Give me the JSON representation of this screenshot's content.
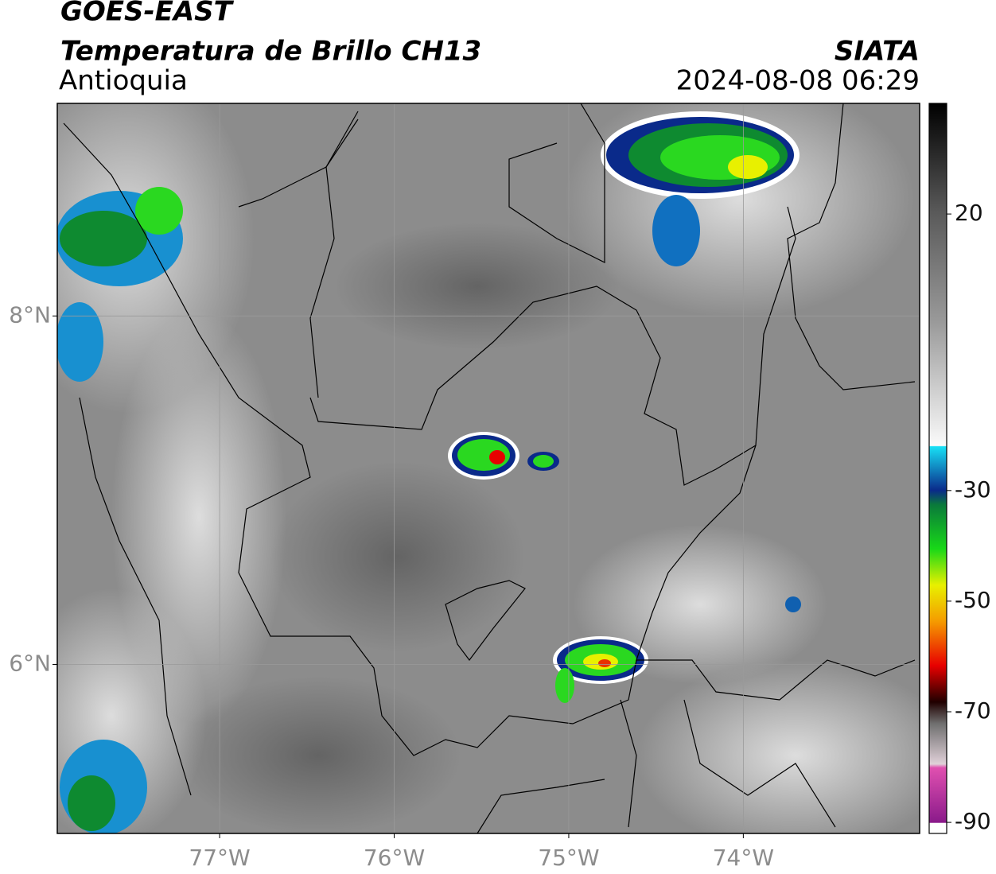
{
  "header": {
    "title": "GOES-EAST",
    "subtitle": "Temperatura de Brillo CH13",
    "region": "Antioquia",
    "source": "SIATA",
    "datetime": "2024-08-08 06:29"
  },
  "map": {
    "xlim": [
      -77.93,
      -72.99
    ],
    "ylim": [
      5.03,
      9.22
    ],
    "xticks": [
      {
        "value": -77,
        "label": "77°W"
      },
      {
        "value": -76,
        "label": "76°W"
      },
      {
        "value": -75,
        "label": "75°W"
      },
      {
        "value": -74,
        "label": "74°W"
      }
    ],
    "yticks": [
      {
        "value": 8,
        "label": "8°N"
      },
      {
        "value": 6,
        "label": "6°N"
      }
    ],
    "grid": true
  },
  "colorbar": {
    "lim": [
      -92,
      40
    ],
    "ticks": [
      20,
      -30,
      -50,
      -70,
      -90
    ]
  }
}
